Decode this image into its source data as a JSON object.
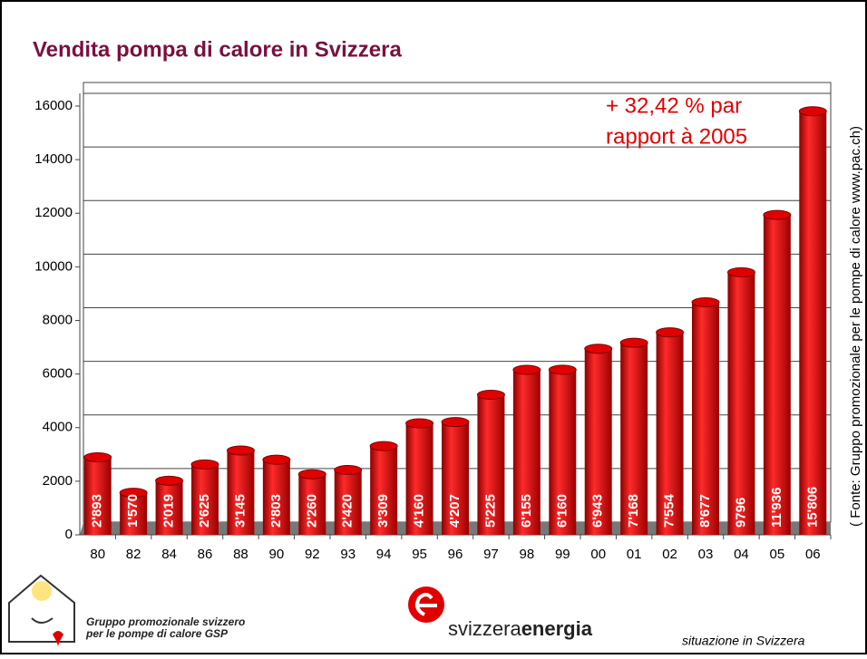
{
  "chart_data": {
    "type": "bar",
    "title": "Vendita pompa di calore in Svizzera",
    "annotation_lines": [
      "+ 32,42 % par",
      "rapport à 2005"
    ],
    "source": "( Fonte: Gruppo promozionale per le pompe di calore www.pac.ch)",
    "categories": [
      "80",
      "82",
      "84",
      "86",
      "88",
      "90",
      "92",
      "93",
      "94",
      "95",
      "96",
      "97",
      "98",
      "99",
      "00",
      "01",
      "02",
      "03",
      "04",
      "05",
      "06"
    ],
    "values": [
      2893,
      1570,
      2019,
      2625,
      3145,
      2803,
      2260,
      2420,
      3309,
      4160,
      4207,
      5225,
      6155,
      6160,
      6943,
      7168,
      7554,
      8677,
      9796,
      11936,
      15806
    ],
    "value_labels": [
      "2'893",
      "1'570",
      "2'019",
      "2'625",
      "3'145",
      "2'803",
      "2'260",
      "2'420",
      "3'309",
      "4'160",
      "4'207",
      "5'225",
      "6'155",
      "6'160",
      "6'943",
      "7'168",
      "7'554",
      "8'677",
      "9796",
      "11'936",
      "15'806"
    ],
    "color": "#e00000",
    "ylim": [
      0,
      16000
    ],
    "yticks": [
      0,
      2000,
      4000,
      6000,
      8000,
      10000,
      12000,
      14000,
      16000
    ],
    "grid": true
  },
  "footer": {
    "gsp_line1": "Gruppo promozionale svizzero",
    "gsp_line2": "per le pompe di calore GSP",
    "brand_light": "svizzera",
    "brand_bold": "energia",
    "note": "situazione in Svizzera"
  }
}
